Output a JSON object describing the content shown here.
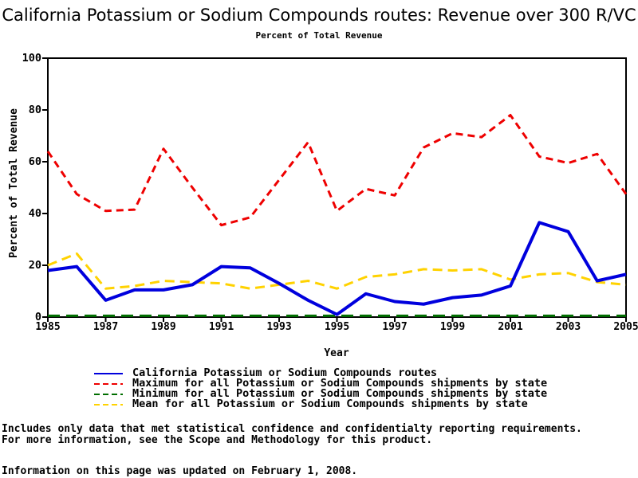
{
  "chart_data": {
    "type": "line",
    "title": "California Potassium or Sodium Compounds routes: Revenue over 300 R/VC",
    "subtitle": "Percent of Total Revenue",
    "xlabel": "Year",
    "ylabel": "Percent of Total Revenue",
    "xlim": [
      1985,
      2005
    ],
    "ylim": [
      0,
      100
    ],
    "x_ticks": [
      1985,
      1987,
      1989,
      1991,
      1993,
      1995,
      1997,
      1999,
      2001,
      2003,
      2005
    ],
    "y_ticks": [
      0,
      20,
      40,
      60,
      80,
      100
    ],
    "grid": false,
    "legend_position": "bottom",
    "x": [
      1985,
      1986,
      1987,
      1988,
      1989,
      1990,
      1991,
      1992,
      1993,
      1994,
      1995,
      1996,
      1997,
      1998,
      1999,
      2000,
      2001,
      2002,
      2003,
      2004,
      2005
    ],
    "series": [
      {
        "name": "California Potassium or Sodium Compounds routes",
        "color": "#0000dd",
        "style": "solid",
        "values": [
          18,
          19.5,
          6.5,
          10.5,
          10.5,
          12.5,
          19.5,
          19,
          13,
          6.5,
          1,
          9,
          6,
          5,
          7.5,
          8.5,
          12,
          36.5,
          33,
          14,
          16.5
        ]
      },
      {
        "name": "Maximum for all Potassium or Sodium Compounds shipments by state",
        "color": "#ee0000",
        "style": "dashed",
        "values": [
          64,
          47.5,
          41,
          41.5,
          65,
          50,
          35.5,
          38.5,
          53,
          67.5,
          41,
          49.5,
          47,
          65.5,
          71,
          69.5,
          78,
          62,
          59.5,
          63,
          47.5
        ]
      },
      {
        "name": "Minimum for all Potassium or Sodium Compounds shipments by state",
        "color": "#006e00",
        "style": "dashed",
        "values": [
          0.5,
          0.5,
          0.5,
          0.5,
          0.5,
          0.5,
          0.5,
          0.5,
          0.5,
          0.5,
          0.5,
          0.5,
          0.5,
          0.5,
          0.5,
          0.5,
          0.5,
          0.5,
          0.5,
          0.5,
          0.5
        ]
      },
      {
        "name": "Mean for all Potassium or Sodium Compounds shipments by state",
        "color": "#ffd200",
        "style": "dashed",
        "values": [
          20,
          24.5,
          11,
          12,
          14,
          13.5,
          13,
          11,
          12.5,
          14,
          11,
          15.5,
          16.5,
          18.5,
          18,
          18.5,
          14.5,
          16.5,
          17,
          13.5,
          12.5
        ]
      }
    ]
  },
  "footnotes": [
    "Includes only data that met statistical confidence and confidentialty reporting requirements.",
    "For more information, see the Scope and Methodology for this product.",
    "Information on this page was updated on February 1, 2008."
  ]
}
